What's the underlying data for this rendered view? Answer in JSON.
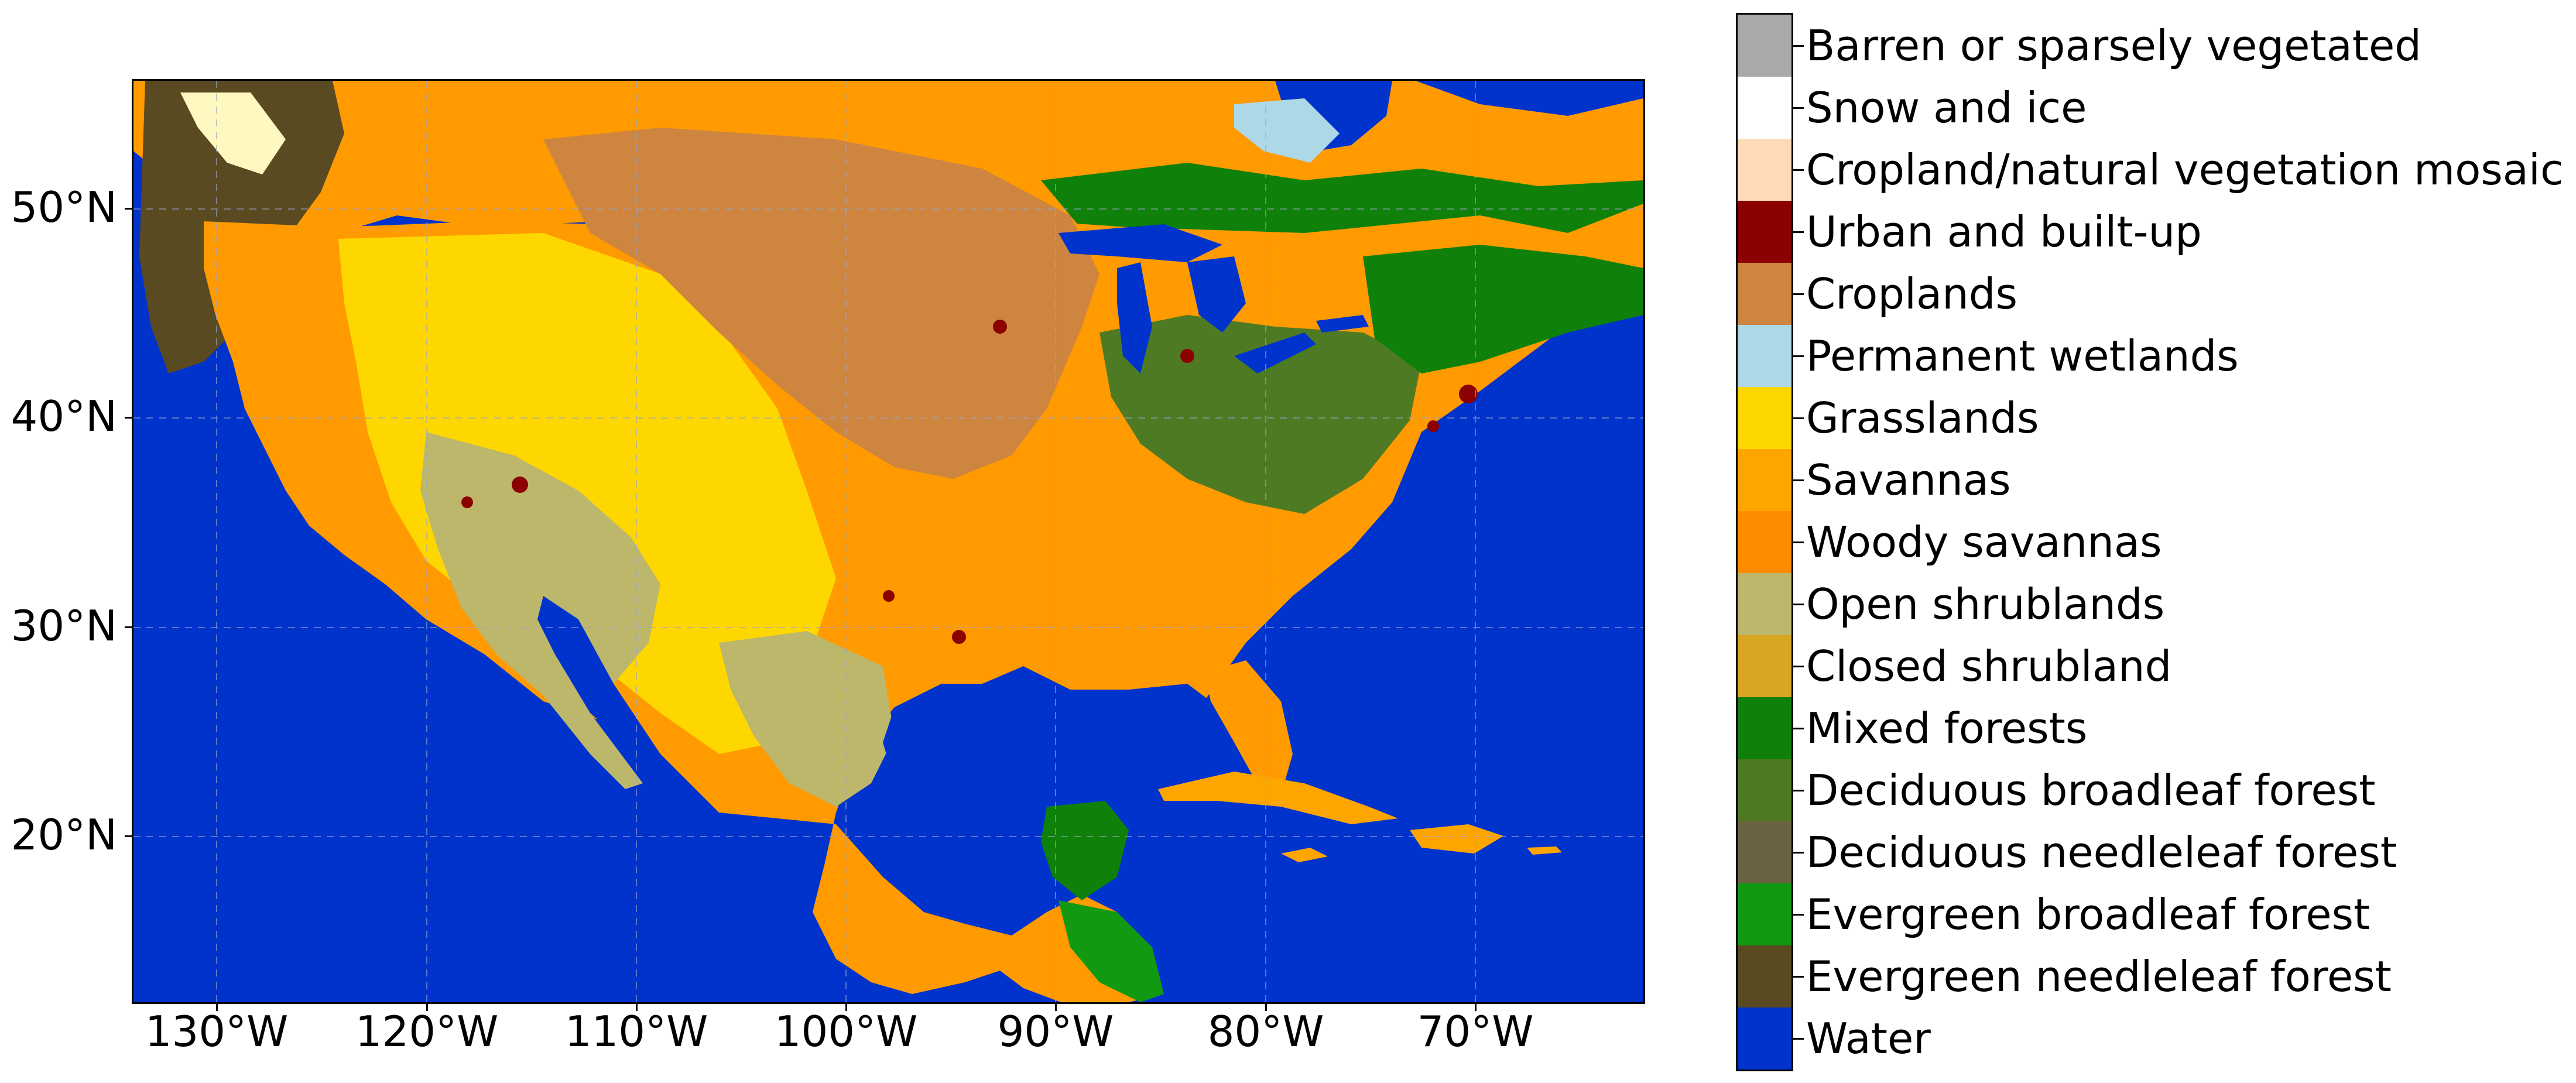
{
  "map": {
    "lat_ticks": [
      "50°N",
      "40°N",
      "30°N",
      "20°N"
    ],
    "lon_ticks": [
      "130°W",
      "120°W",
      "110°W",
      "100°W",
      "90°W",
      "80°W",
      "70°W"
    ],
    "extent": {
      "lon_min": -134,
      "lon_max": -62,
      "lat_min": 12,
      "lat_max": 56
    },
    "gridlines": true
  },
  "legend": {
    "classes": [
      {
        "label": "Water",
        "color": "#0033cc"
      },
      {
        "label": "Evergreen needleleaf forest",
        "color": "#5a4a22"
      },
      {
        "label": "Evergreen broadleaf forest",
        "color": "#119911"
      },
      {
        "label": "Deciduous needleleaf forest",
        "color": "#6b6242"
      },
      {
        "label": "Deciduous broadleaf forest",
        "color": "#4f7a24"
      },
      {
        "label": "Mixed forests",
        "color": "#0f800a"
      },
      {
        "label": "Closed shrubland",
        "color": "#daa520"
      },
      {
        "label": "Open shrublands",
        "color": "#bdb76b"
      },
      {
        "label": "Woody savannas",
        "color": "#ff8c00"
      },
      {
        "label": "Savannas",
        "color": "#ffa500"
      },
      {
        "label": "Grasslands",
        "color": "#ffd700"
      },
      {
        "label": "Permanent wetlands",
        "color": "#add8e6"
      },
      {
        "label": "Croplands",
        "color": "#cd853f"
      },
      {
        "label": "Urban and built-up",
        "color": "#8b0000"
      },
      {
        "label": "Cropland/natural vegetation mosaic",
        "color": "#ffdab9"
      },
      {
        "label": "Snow and ice",
        "color": "#ffffff"
      },
      {
        "label": "Barren or sparsely vegetated",
        "color": "#a9a9a9"
      }
    ]
  }
}
